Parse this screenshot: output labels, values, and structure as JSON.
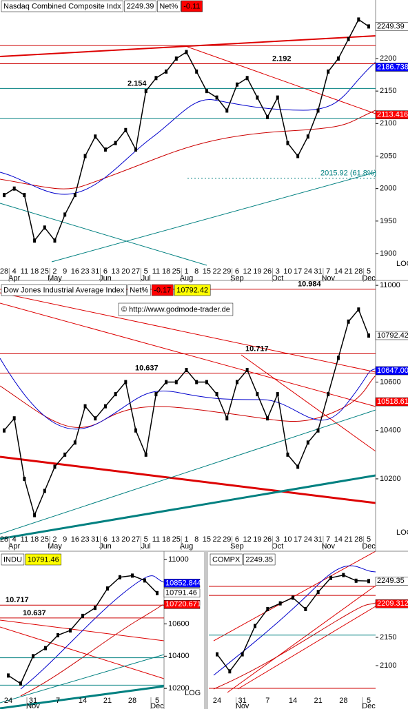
{
  "chart_data": [
    {
      "type": "line",
      "color": "#000000",
      "header": [
        {
          "text": "Nasdaq Combined Composite Indx",
          "bg": "#ffffff"
        },
        {
          "text": "2249.39",
          "bg": "#ffffff"
        },
        {
          "text": "Net%",
          "bg": "#ffffff"
        },
        {
          "text": "-0.11",
          "bg": "#ff0000"
        }
      ],
      "categories": [
        "28",
        "4",
        "11",
        "18",
        "25",
        "2",
        "9",
        "16",
        "23",
        "31",
        "6",
        "13",
        "20",
        "27",
        "5",
        "11",
        "18",
        "25",
        "1",
        "8",
        "15",
        "22",
        "29",
        "6",
        "12",
        "19",
        "26",
        "3",
        "10",
        "17",
        "24",
        "31",
        "7",
        "14",
        "21",
        "28",
        "5"
      ],
      "month_labels": [
        null,
        "Apr",
        null,
        null,
        null,
        "May",
        null,
        null,
        null,
        null,
        "Jun",
        null,
        null,
        null,
        "Jul",
        null,
        null,
        null,
        "Aug",
        null,
        null,
        null,
        null,
        "Sep",
        null,
        null,
        null,
        "Oct",
        null,
        null,
        null,
        null,
        "Nov",
        null,
        null,
        null,
        "Dec"
      ],
      "values": [
        1990,
        2000,
        1990,
        1920,
        1940,
        1920,
        1960,
        1990,
        2050,
        2080,
        2060,
        2070,
        2090,
        2060,
        2150,
        2170,
        2180,
        2200,
        2210,
        2180,
        2150,
        2140,
        2120,
        2160,
        2170,
        2140,
        2110,
        2140,
        2070,
        2050,
        2080,
        2120,
        2180,
        2200,
        2230,
        2260,
        2249.39
      ],
      "ylim": [
        1882,
        2271
      ],
      "yticks": [
        1900,
        1950,
        2000,
        2050,
        2100,
        2150,
        2200
      ],
      "levels": [
        {
          "value": 2220,
          "color": "#cc0000"
        },
        {
          "value": 2108,
          "color": "#008080"
        }
      ],
      "annotations": [
        {
          "value": 2192,
          "label": "2.192",
          "color": "#cc0000"
        },
        {
          "value": 2154,
          "label": "2.154",
          "color": "#008080"
        },
        {
          "value": 2015.92,
          "label": "2015.92 (61.8%)",
          "color": "#008080"
        }
      ],
      "tags": [
        {
          "value": 2249.39,
          "bg": "#ffffff",
          "fg": "#000000"
        },
        {
          "value": 2186.738,
          "bg": "#0000ff",
          "fg": "#ffffff"
        },
        {
          "value": 2113.416,
          "bg": "#ff0000",
          "fg": "#ffffff"
        }
      ],
      "scale_note": "LOG"
    },
    {
      "type": "line",
      "color": "#000000",
      "header": [
        {
          "text": "Dow Jones Industrial Average Index",
          "bg": "#ffffff"
        },
        {
          "text": "Net%",
          "bg": "#ffffff"
        },
        {
          "text": "-0.17",
          "bg": "#ff0000"
        },
        {
          "text": "10792.42",
          "bg": "#ffff00"
        }
      ],
      "watermark": "© http://www.godmode-trader.de",
      "categories": [
        "28",
        "4",
        "11",
        "18",
        "25",
        "2",
        "9",
        "16",
        "23",
        "31",
        "6",
        "13",
        "20",
        "27",
        "5",
        "11",
        "18",
        "25",
        "1",
        "8",
        "15",
        "22",
        "29",
        "6",
        "12",
        "19",
        "26",
        "3",
        "10",
        "17",
        "24",
        "31",
        "7",
        "14",
        "21",
        "28",
        "5"
      ],
      "month_labels": [
        null,
        "Apr",
        null,
        null,
        null,
        "May",
        null,
        null,
        null,
        null,
        "Jun",
        null,
        null,
        null,
        "Jul",
        null,
        null,
        null,
        "Aug",
        null,
        null,
        null,
        null,
        "Sep",
        null,
        null,
        null,
        "Oct",
        null,
        null,
        null,
        null,
        "Nov",
        null,
        null,
        null,
        "Dec"
      ],
      "values": [
        10400,
        10450,
        10200,
        10050,
        10150,
        10250,
        10300,
        10350,
        10500,
        10450,
        10500,
        10550,
        10600,
        10400,
        10300,
        10550,
        10600,
        10600,
        10650,
        10600,
        10600,
        10550,
        10450,
        10600,
        10650,
        10550,
        10450,
        10550,
        10300,
        10250,
        10350,
        10400,
        10550,
        10700,
        10850,
        10900,
        10792.42
      ],
      "ylim": [
        9972,
        11006
      ],
      "yticks": [
        10200,
        10400,
        10600,
        11000
      ],
      "levels": [],
      "annotations": [
        {
          "value": 10984,
          "label": "10.984",
          "color": "#cc0000"
        },
        {
          "value": 10717,
          "label": "10.717",
          "color": "#cc0000"
        },
        {
          "value": 10637,
          "label": "10.637",
          "color": "#cc0000"
        }
      ],
      "tags": [
        {
          "value": 10792.42,
          "bg": "#ffffff",
          "fg": "#000000"
        },
        {
          "value": 10647,
          "label": "10647.00",
          "bg": "#0000ff",
          "fg": "#ffffff"
        },
        {
          "value": 10518.61,
          "bg": "#ff0000",
          "fg": "#ffffff"
        }
      ],
      "scale_note": "LOG"
    },
    {
      "type": "line",
      "color": "#000000",
      "header": [
        {
          "text": "INDU",
          "bg": "#ffffff"
        },
        {
          "text": "10791.46",
          "bg": "#ffff00"
        }
      ],
      "categories": [
        "24",
        null,
        "31",
        null,
        "7",
        null,
        "14",
        null,
        "21",
        null,
        "28",
        null,
        "5"
      ],
      "month_labels": [
        null,
        null,
        "Nov",
        null,
        null,
        null,
        null,
        null,
        null,
        null,
        null,
        null,
        "Dec"
      ],
      "values": [
        10280,
        10230,
        10400,
        10450,
        10530,
        10560,
        10650,
        10700,
        10820,
        10890,
        10900,
        10870,
        10791.46
      ],
      "ylim": [
        10162,
        11030
      ],
      "yticks": [
        10200,
        10400,
        10600,
        11000
      ],
      "levels": [
        {
          "value": 10390,
          "color": "#008080"
        },
        {
          "value": 10220,
          "color": "#008080"
        }
      ],
      "annotations": [
        {
          "value": 10717,
          "label": "10.717",
          "color": "#cc0000"
        },
        {
          "value": 10637,
          "label": "10.637",
          "color": "#cc0000"
        }
      ],
      "tags": [
        {
          "value": 10852.844,
          "bg": "#0000ff",
          "fg": "#ffffff"
        },
        {
          "value": 10791.46,
          "bg": "#ffffff",
          "fg": "#000000"
        },
        {
          "value": 10720.671,
          "bg": "#ff0000",
          "fg": "#ffffff"
        }
      ],
      "scale_note": "LOG"
    },
    {
      "type": "line",
      "color": "#000000",
      "header": [
        {
          "text": "COMPX",
          "bg": "#ffffff"
        },
        {
          "text": "2249.35",
          "bg": "#ffffff"
        }
      ],
      "categories": [
        "24",
        null,
        "31",
        null,
        "7",
        null,
        "14",
        null,
        "21",
        null,
        "28",
        null,
        "5"
      ],
      "month_labels": [
        null,
        null,
        "Nov",
        null,
        null,
        null,
        null,
        null,
        null,
        null,
        null,
        null,
        "Dec"
      ],
      "values": [
        2120,
        2090,
        2120,
        2170,
        2200,
        2210,
        2220,
        2200,
        2230,
        2255,
        2260,
        2250,
        2249.35
      ],
      "ylim": [
        2049,
        2296
      ],
      "yticks": [
        2100,
        2150
      ],
      "levels": [
        {
          "value": 2240,
          "color": "#cc0000"
        },
        {
          "value": 2224,
          "color": "#cc0000"
        },
        {
          "value": 2154,
          "color": "#008080"
        },
        {
          "value": 2060,
          "color": "#cc0000"
        }
      ],
      "annotations": [],
      "tags": [
        {
          "value": 2249.35,
          "bg": "#ffffff",
          "fg": "#000000"
        },
        {
          "value": 2209.312,
          "bg": "#ff0000",
          "fg": "#ffffff"
        }
      ]
    }
  ]
}
